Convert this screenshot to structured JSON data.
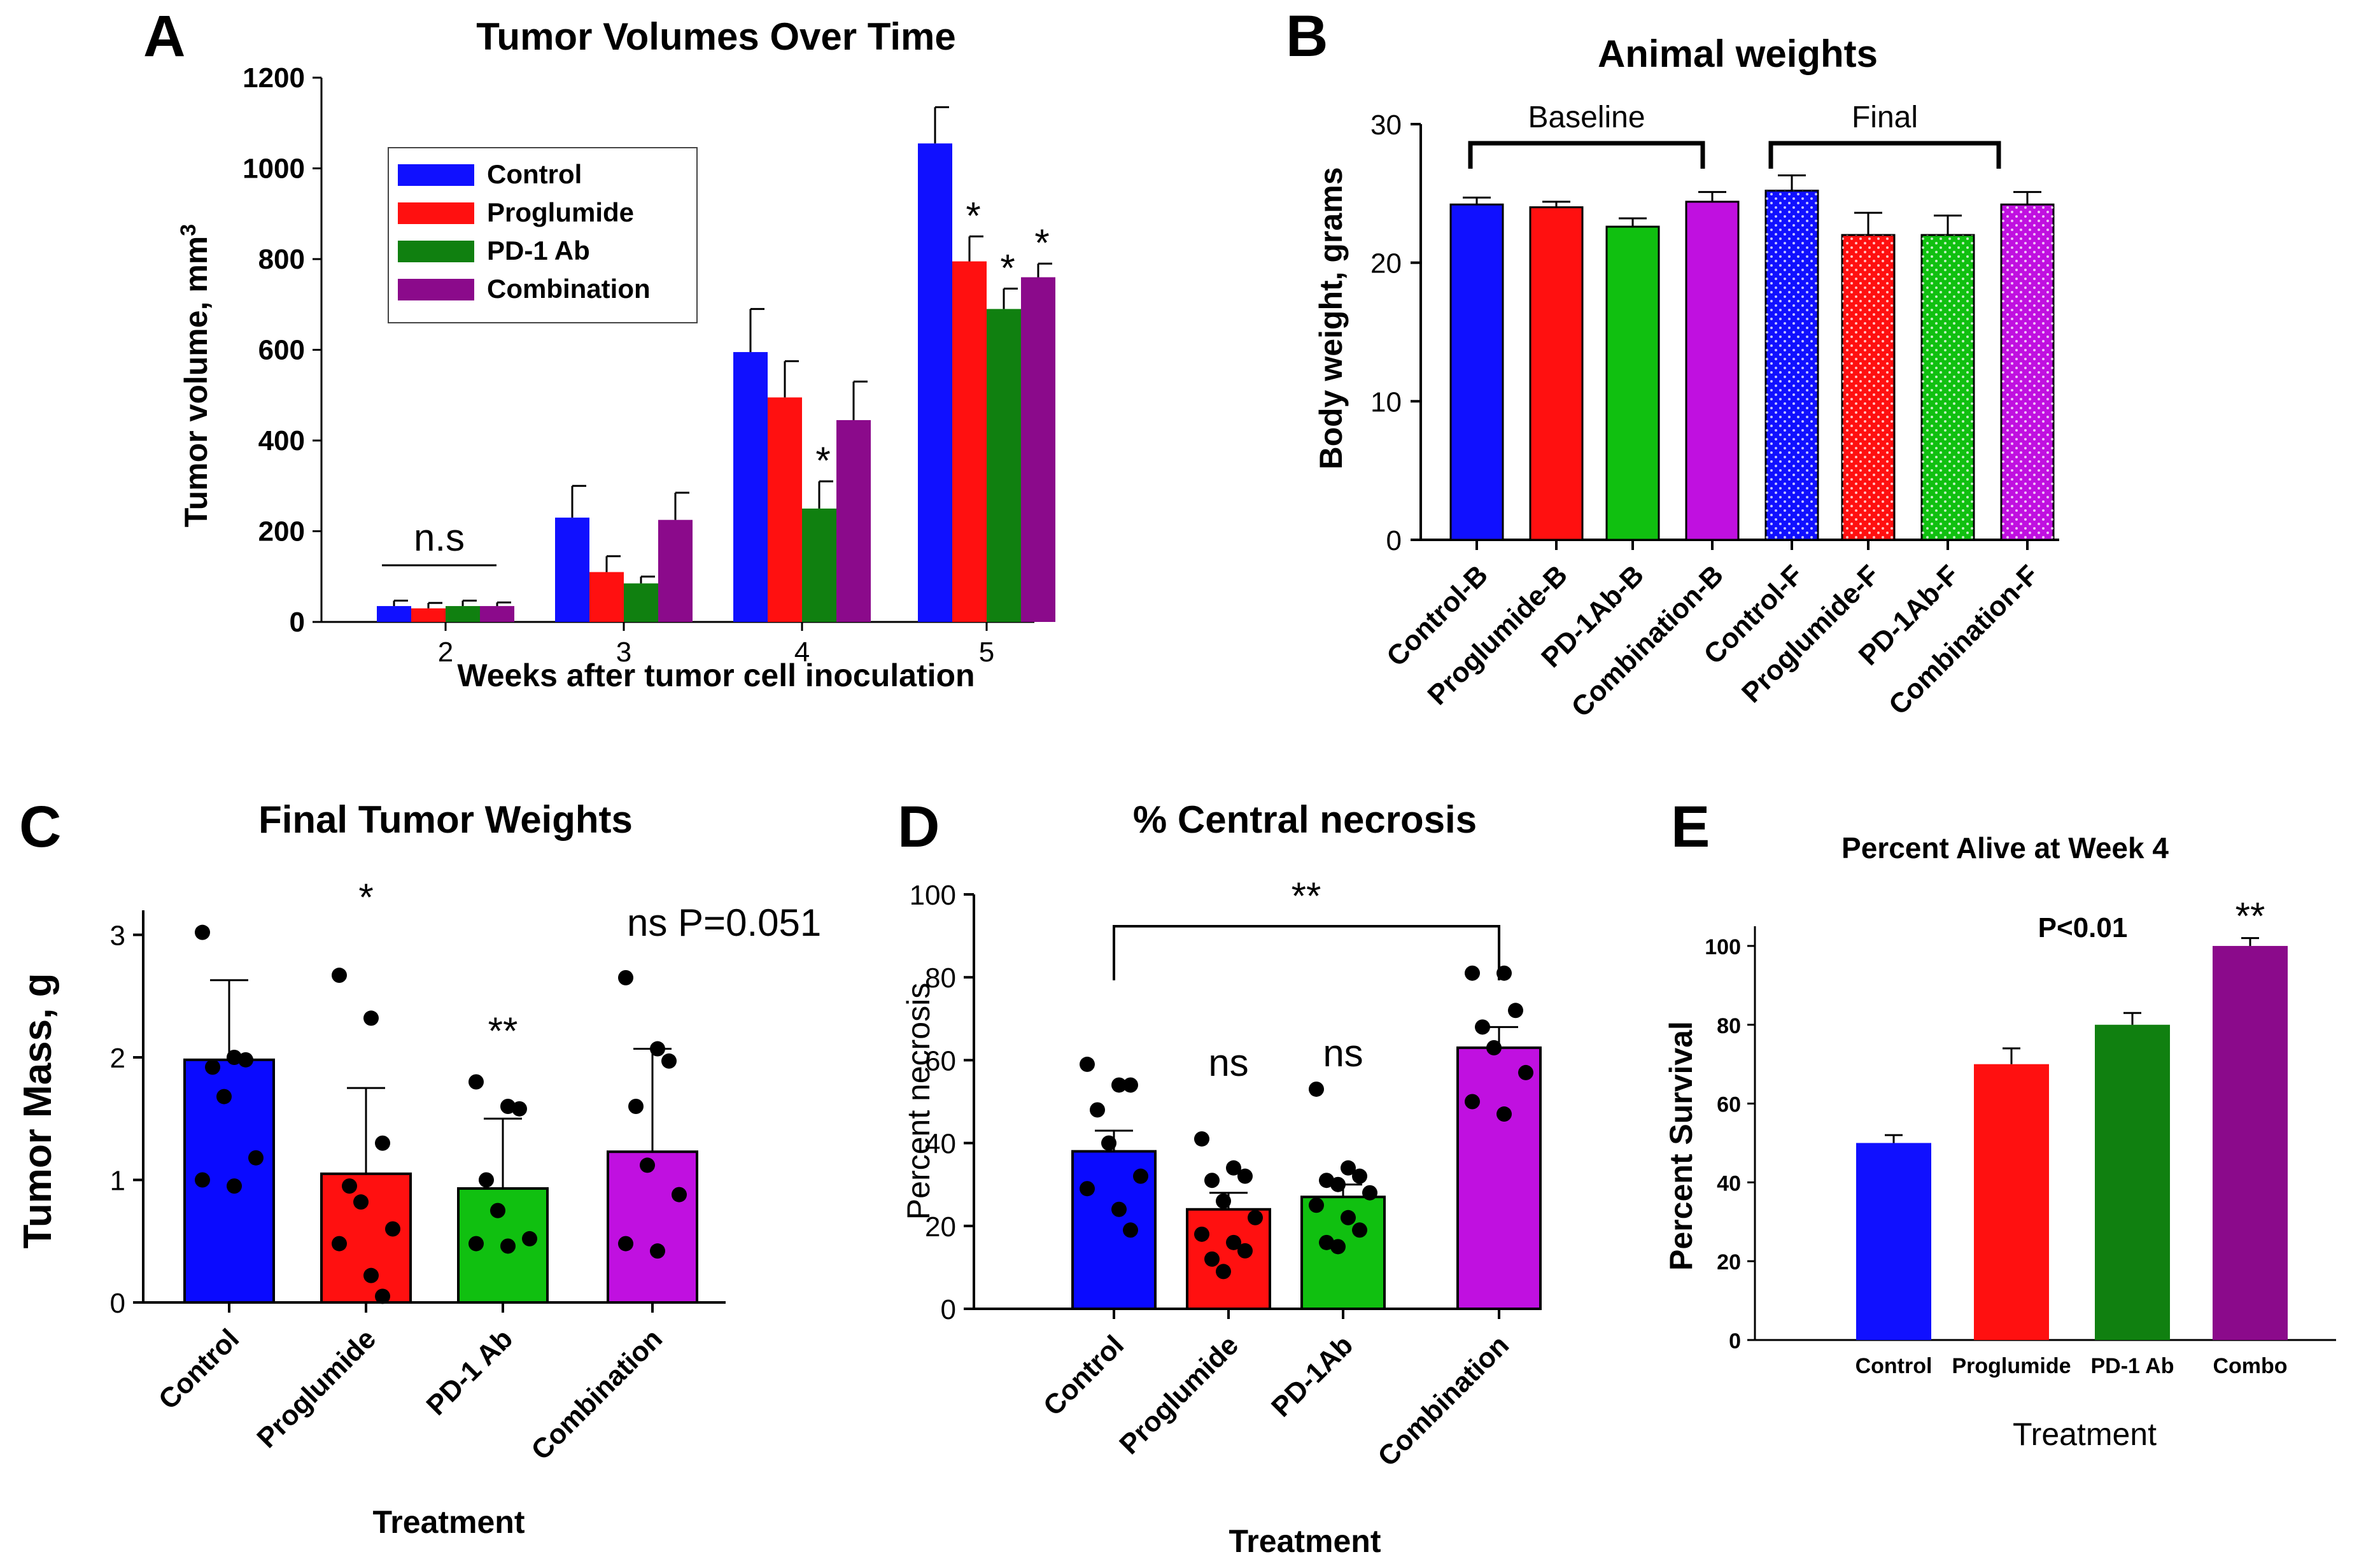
{
  "chart_data": [
    {
      "panel": "A",
      "type": "bar",
      "title": "Tumor Volumes Over Time",
      "xlabel": "Weeks after tumor cell inoculation",
      "ylabel": "Tumor volume, mm",
      "ylabel_sup": "3",
      "ylim": [
        0,
        1200
      ],
      "yticks": [
        0,
        200,
        400,
        600,
        800,
        1000,
        1200
      ],
      "categories": [
        "2",
        "3",
        "4",
        "5"
      ],
      "series": [
        {
          "name": "Control",
          "color": "#1010ff",
          "values": [
            35,
            230,
            595,
            1055
          ],
          "errors": [
            12,
            70,
            95,
            80
          ]
        },
        {
          "name": "Proglumide",
          "color": "#ff1010",
          "values": [
            30,
            110,
            495,
            795
          ],
          "errors": [
            12,
            35,
            80,
            55
          ]
        },
        {
          "name": "PD-1 Ab",
          "color": "#108010",
          "values": [
            35,
            85,
            250,
            690
          ],
          "errors": [
            12,
            15,
            60,
            45
          ]
        },
        {
          "name": "Combination",
          "color": "#8b0a8b",
          "values": [
            35,
            225,
            445,
            760
          ],
          "errors": [
            8,
            60,
            85,
            30
          ]
        }
      ],
      "annotations": {
        "ns_label": "n.s",
        "star": "*"
      },
      "significance": [
        [
          false,
          false,
          false,
          false
        ],
        [
          false,
          false,
          false,
          false
        ],
        [
          false,
          false,
          true,
          false
        ],
        [
          false,
          true,
          true,
          true
        ]
      ]
    },
    {
      "panel": "B",
      "type": "bar",
      "title": "Animal weights",
      "ylabel": "Body weight, grams",
      "ylim": [
        0,
        30
      ],
      "yticks": [
        0,
        10,
        20,
        30
      ],
      "categories": [
        "Control-B",
        "Proglumide-B",
        "PD-1Ab-B",
        "Combination-B",
        "Control-F",
        "Proglumide-F",
        "PD-1Ab-F",
        "Combination-F"
      ],
      "values": [
        24.2,
        24.0,
        22.6,
        24.4,
        25.2,
        22.0,
        22.0,
        24.2
      ],
      "errors": [
        0.5,
        0.4,
        0.6,
        0.7,
        1.1,
        1.6,
        1.4,
        0.9
      ],
      "colors": [
        "#1010ff",
        "#ff1010",
        "#10c010",
        "#c010e0",
        "#1010ff",
        "#ff1010",
        "#10c010",
        "#c010e0"
      ],
      "dotted": [
        false,
        false,
        false,
        false,
        true,
        true,
        true,
        true
      ],
      "groups": {
        "baseline": "Baseline",
        "final": "Final"
      }
    },
    {
      "panel": "C",
      "type": "bar",
      "title": "Final Tumor Weights",
      "xlabel": "Treatment",
      "ylabel": "Tumor Mass, g",
      "ylim": [
        0,
        3.2
      ],
      "yticks": [
        0,
        1,
        2,
        3
      ],
      "categories": [
        "Control",
        "Proglumide",
        "PD-1 Ab",
        "Combination"
      ],
      "values": [
        1.98,
        1.05,
        0.93,
        1.23
      ],
      "errors": [
        0.65,
        0.7,
        0.57,
        0.84
      ],
      "colors": [
        "#0a0aff",
        "#ff1010",
        "#10c010",
        "#c010e0"
      ],
      "points": [
        [
          3.02,
          2.0,
          1.98,
          1.92,
          1.68,
          1.18,
          1.0,
          0.95
        ],
        [
          2.67,
          2.32,
          1.3,
          0.95,
          0.82,
          0.6,
          0.48,
          0.22,
          0.05
        ],
        [
          1.8,
          1.6,
          1.58,
          1.0,
          0.75,
          0.52,
          0.48,
          0.46
        ],
        [
          2.65,
          2.07,
          1.97,
          1.6,
          1.12,
          0.88,
          0.48,
          0.42
        ]
      ],
      "annotations": [
        "",
        "*",
        "**",
        "ns P=0.051"
      ]
    },
    {
      "panel": "D",
      "type": "bar",
      "title": "% Central necrosis",
      "xlabel": "Treatment",
      "ylabel": "Percent necrosis",
      "ylim": [
        0,
        100
      ],
      "yticks": [
        0,
        20,
        40,
        60,
        80,
        100
      ],
      "categories": [
        "Control",
        "Proglumide",
        "PD-1Ab",
        "Combination"
      ],
      "values": [
        38,
        24,
        27,
        63
      ],
      "errors": [
        5,
        4,
        3,
        5
      ],
      "colors": [
        "#0a0aff",
        "#ff1010",
        "#10c010",
        "#c010e0"
      ],
      "points": [
        [
          59,
          54,
          54,
          48,
          40,
          32,
          29,
          24,
          19
        ],
        [
          41,
          34,
          32,
          31,
          26,
          22,
          18,
          16,
          14,
          12,
          9
        ],
        [
          53,
          34,
          32,
          31,
          30,
          28,
          25,
          22,
          19,
          16,
          15
        ],
        [
          81,
          81,
          72,
          68,
          63,
          57,
          50,
          47
        ]
      ],
      "annotations": [
        "",
        "ns",
        "ns",
        ""
      ],
      "bracket_label": "**"
    },
    {
      "panel": "E",
      "type": "bar",
      "title": "Percent Alive at Week 4",
      "xlabel": "Treatment",
      "ylabel": "Percent Survival",
      "ylim": [
        0,
        105
      ],
      "yticks": [
        0,
        20,
        40,
        60,
        80,
        100
      ],
      "categories": [
        "Control",
        "Proglumide",
        "PD-1 Ab",
        "Combo"
      ],
      "values": [
        50,
        70,
        80,
        100
      ],
      "errors": [
        2,
        4,
        3,
        2
      ],
      "colors": [
        "#1010ff",
        "#ff1010",
        "#108010",
        "#8b0a8b"
      ],
      "p_label": "P<0.01",
      "annotations": [
        "",
        "",
        "",
        "**"
      ]
    }
  ],
  "panel_labels": {
    "A": "A",
    "B": "B",
    "C": "C",
    "D": "D",
    "E": "E"
  }
}
